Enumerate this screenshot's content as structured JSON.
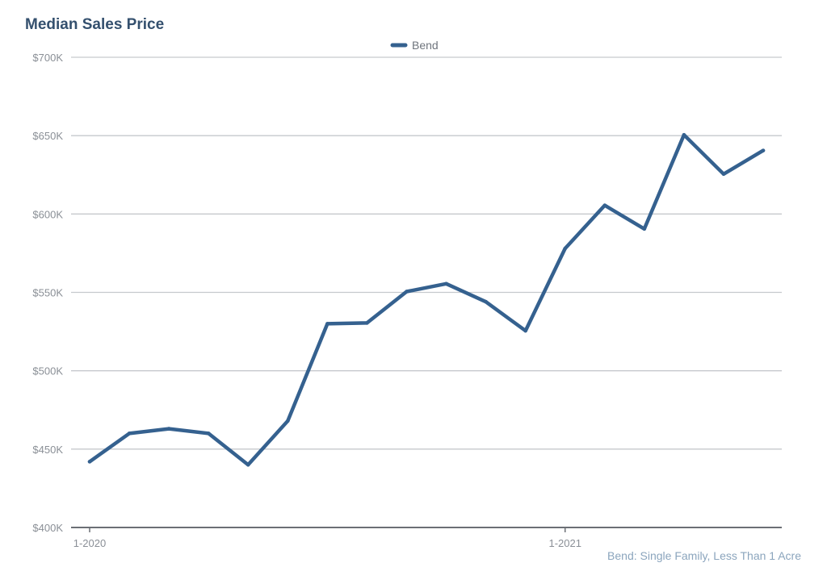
{
  "chart_data": {
    "type": "line",
    "title": "Median Sales Price",
    "xlabel": "",
    "ylabel": "",
    "x": [
      "1-2020",
      "2-2020",
      "3-2020",
      "4-2020",
      "5-2020",
      "6-2020",
      "7-2020",
      "8-2020",
      "9-2020",
      "10-2020",
      "11-2020",
      "12-2020",
      "1-2021",
      "2-2021",
      "3-2021",
      "4-2021",
      "5-2021",
      "6-2021"
    ],
    "x_tick_labels": [
      "1-2020",
      "1-2021"
    ],
    "x_tick_positions": [
      0,
      12
    ],
    "y_tick_labels": [
      "$400K",
      "$450K",
      "$500K",
      "$550K",
      "$600K",
      "$650K",
      "$700K"
    ],
    "y_ticks": [
      400000,
      450000,
      500000,
      550000,
      600000,
      650000,
      700000
    ],
    "ylim": [
      400000,
      700000
    ],
    "grid": true,
    "legend_position": "top-center",
    "series": [
      {
        "name": "Bend",
        "color": "#35618f",
        "values": [
          442000,
          460000,
          463000,
          460000,
          440000,
          468000,
          530000,
          530500,
          550500,
          555500,
          544000,
          525500,
          578000,
          605500,
          590500,
          650500,
          625500,
          640500
        ]
      }
    ],
    "annotation": "Bend: Single Family, Less Than 1 Acre"
  }
}
